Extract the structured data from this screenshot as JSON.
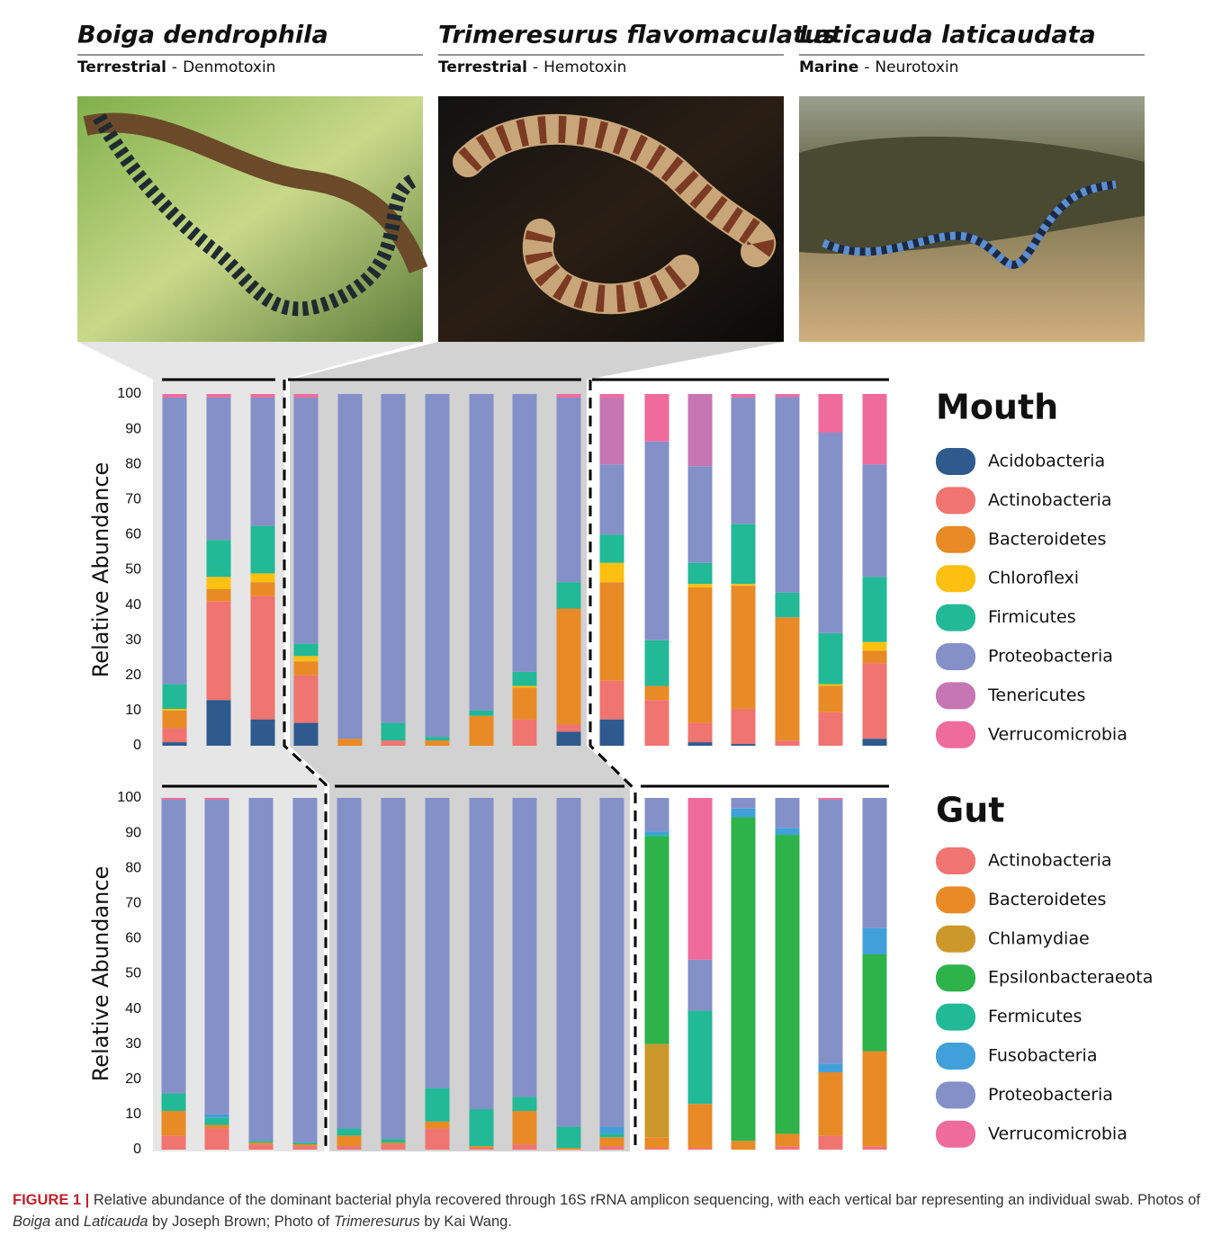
{
  "species": [
    {
      "name": "Boiga dendrophila",
      "habitat": "Terrestrial",
      "toxin": "Denmotoxin"
    },
    {
      "name": "Trimeresurus flavomaculatus",
      "habitat": "Terrestrial",
      "toxin": "Hemotoxin"
    },
    {
      "name": "Laticauda laticaudata",
      "habitat": "Marine",
      "toxin": "Neurotoxin"
    }
  ],
  "separator": "-",
  "caption": {
    "label": "FIGURE 1 |",
    "text": [
      "Relative abundance of the dominant bacterial phyla recovered through 16S rRNA amplicon sequencing, with each vertical bar representing an individual swab. Photos of ",
      "Boiga",
      " and ",
      "Laticauda",
      " by Joseph Brown; Photo of ",
      "Trimeresurus",
      " by Kai Wang."
    ]
  },
  "chart_data": [
    {
      "type": "bar",
      "stacked": true,
      "title": "Mouth",
      "ylabel": "Relative Abundance",
      "legend": "right",
      "categories": [
        null,
        null,
        null,
        null,
        null,
        null,
        null,
        null,
        null,
        null,
        null,
        null,
        null,
        null,
        null,
        null,
        null
      ],
      "ylim": [
        0,
        100
      ],
      "yticks": [
        0,
        10,
        20,
        30,
        40,
        50,
        60,
        70,
        80,
        90,
        100
      ],
      "series": [
        {
          "name": "Acidobacteria",
          "color": "#2e5a8e",
          "values": [
            1,
            13,
            7.5,
            6.5,
            0,
            0,
            0,
            0,
            0,
            4,
            7.5,
            0,
            1,
            0.5,
            0,
            0,
            2
          ]
        },
        {
          "name": "Actinobacteria",
          "color": "#f07470",
          "values": [
            4,
            28,
            35,
            13.5,
            0,
            1.5,
            0,
            0,
            7.5,
            2,
            11,
            13,
            5.5,
            10,
            1.5,
            9.5,
            21.5
          ]
        },
        {
          "name": "Bacteroidetes",
          "color": "#e88a26",
          "values": [
            5,
            3.5,
            4,
            4,
            2,
            0,
            1.5,
            8.5,
            9,
            33,
            28,
            4,
            38.5,
            35,
            35,
            7.5,
            3.5
          ]
        },
        {
          "name": "Chloroflexi",
          "color": "#fdc010",
          "values": [
            0.5,
            3.5,
            2.5,
            1.5,
            0,
            0,
            0,
            0,
            0.5,
            0,
            5.5,
            0,
            1,
            0.5,
            0,
            0.5,
            2.5
          ]
        },
        {
          "name": "Firmicutes",
          "color": "#22b996",
          "values": [
            7,
            10.5,
            13.5,
            3.5,
            0,
            5,
            1,
            1.5,
            4,
            7.5,
            8,
            13,
            6,
            17,
            7,
            14.5,
            18.5
          ]
        },
        {
          "name": "Proteobacteria",
          "color": "#8490c8",
          "values": [
            81.5,
            40.5,
            36.5,
            70,
            98,
            93.5,
            97.5,
            90,
            79,
            52.5,
            20,
            56.5,
            27.5,
            36,
            55.5,
            57,
            32
          ]
        },
        {
          "name": "Tenericutes",
          "color": "#c676b2",
          "values": [
            0,
            0,
            0,
            0,
            0,
            0,
            0,
            0,
            0,
            0,
            19,
            0,
            20.5,
            0,
            0.5,
            0,
            0
          ]
        },
        {
          "name": "Verrucomicrobia",
          "color": "#ef6b9c",
          "values": [
            1,
            1,
            1,
            1,
            0,
            0,
            0,
            0,
            0,
            1,
            1,
            13.5,
            0,
            1,
            0.5,
            11,
            20
          ]
        }
      ]
    },
    {
      "type": "bar",
      "stacked": true,
      "title": "Gut",
      "ylabel": "Relative Abundance",
      "legend": "right",
      "categories": [
        null,
        null,
        null,
        null,
        null,
        null,
        null,
        null,
        null,
        null,
        null,
        null,
        null,
        null,
        null,
        null,
        null
      ],
      "ylim": [
        0,
        100
      ],
      "yticks": [
        0,
        10,
        20,
        30,
        40,
        50,
        60,
        70,
        80,
        90,
        100
      ],
      "series": [
        {
          "name": "Actinobacteria",
          "color": "#f07470",
          "values": [
            4,
            6,
            1.5,
            1,
            1,
            1.5,
            6,
            0.5,
            1.5,
            0,
            1,
            0.5,
            0.5,
            0,
            1,
            4,
            1
          ]
        },
        {
          "name": "Bacteroidetes",
          "color": "#e88a26",
          "values": [
            7,
            1,
            0.5,
            0.5,
            3,
            0.5,
            2,
            0.5,
            9.5,
            0.5,
            2.5,
            3,
            12.5,
            2.5,
            3.5,
            18,
            27
          ]
        },
        {
          "name": "Chlamydiae",
          "color": "#cc982b",
          "values": [
            0,
            0,
            0,
            0,
            0,
            0,
            0,
            0,
            0,
            0,
            0,
            26.5,
            0,
            0,
            0,
            0,
            0
          ]
        },
        {
          "name": "Epsilonbacteraeota",
          "color": "#2db34a",
          "values": [
            0,
            0,
            0,
            0,
            0,
            0,
            0,
            0,
            0,
            0,
            0,
            59,
            0,
            92,
            85,
            0,
            27.5
          ]
        },
        {
          "name": "Fermicutes",
          "color": "#22b996",
          "values": [
            5,
            2,
            0.5,
            0.5,
            2,
            1,
            9.5,
            10.5,
            4,
            6,
            1,
            0.5,
            26.5,
            0,
            0,
            0,
            0
          ]
        },
        {
          "name": "Fusobacteria",
          "color": "#41a0da",
          "values": [
            0,
            1,
            0,
            0,
            0,
            0,
            0,
            0,
            0,
            0,
            2,
            1,
            0,
            2.5,
            2,
            2.5,
            7.5
          ]
        },
        {
          "name": "Proteobacteria",
          "color": "#8490c8",
          "values": [
            83.5,
            89.5,
            97.5,
            98,
            94,
            97,
            82.5,
            88.5,
            85,
            93.5,
            93.5,
            9.5,
            14.5,
            3,
            8.5,
            75,
            37
          ]
        },
        {
          "name": "Verrucomicrobia",
          "color": "#ef6b9c",
          "values": [
            0.5,
            0.5,
            0,
            0,
            0,
            0,
            0,
            0,
            0,
            0,
            0,
            0,
            46,
            0,
            0,
            0.5,
            0
          ]
        }
      ]
    }
  ]
}
